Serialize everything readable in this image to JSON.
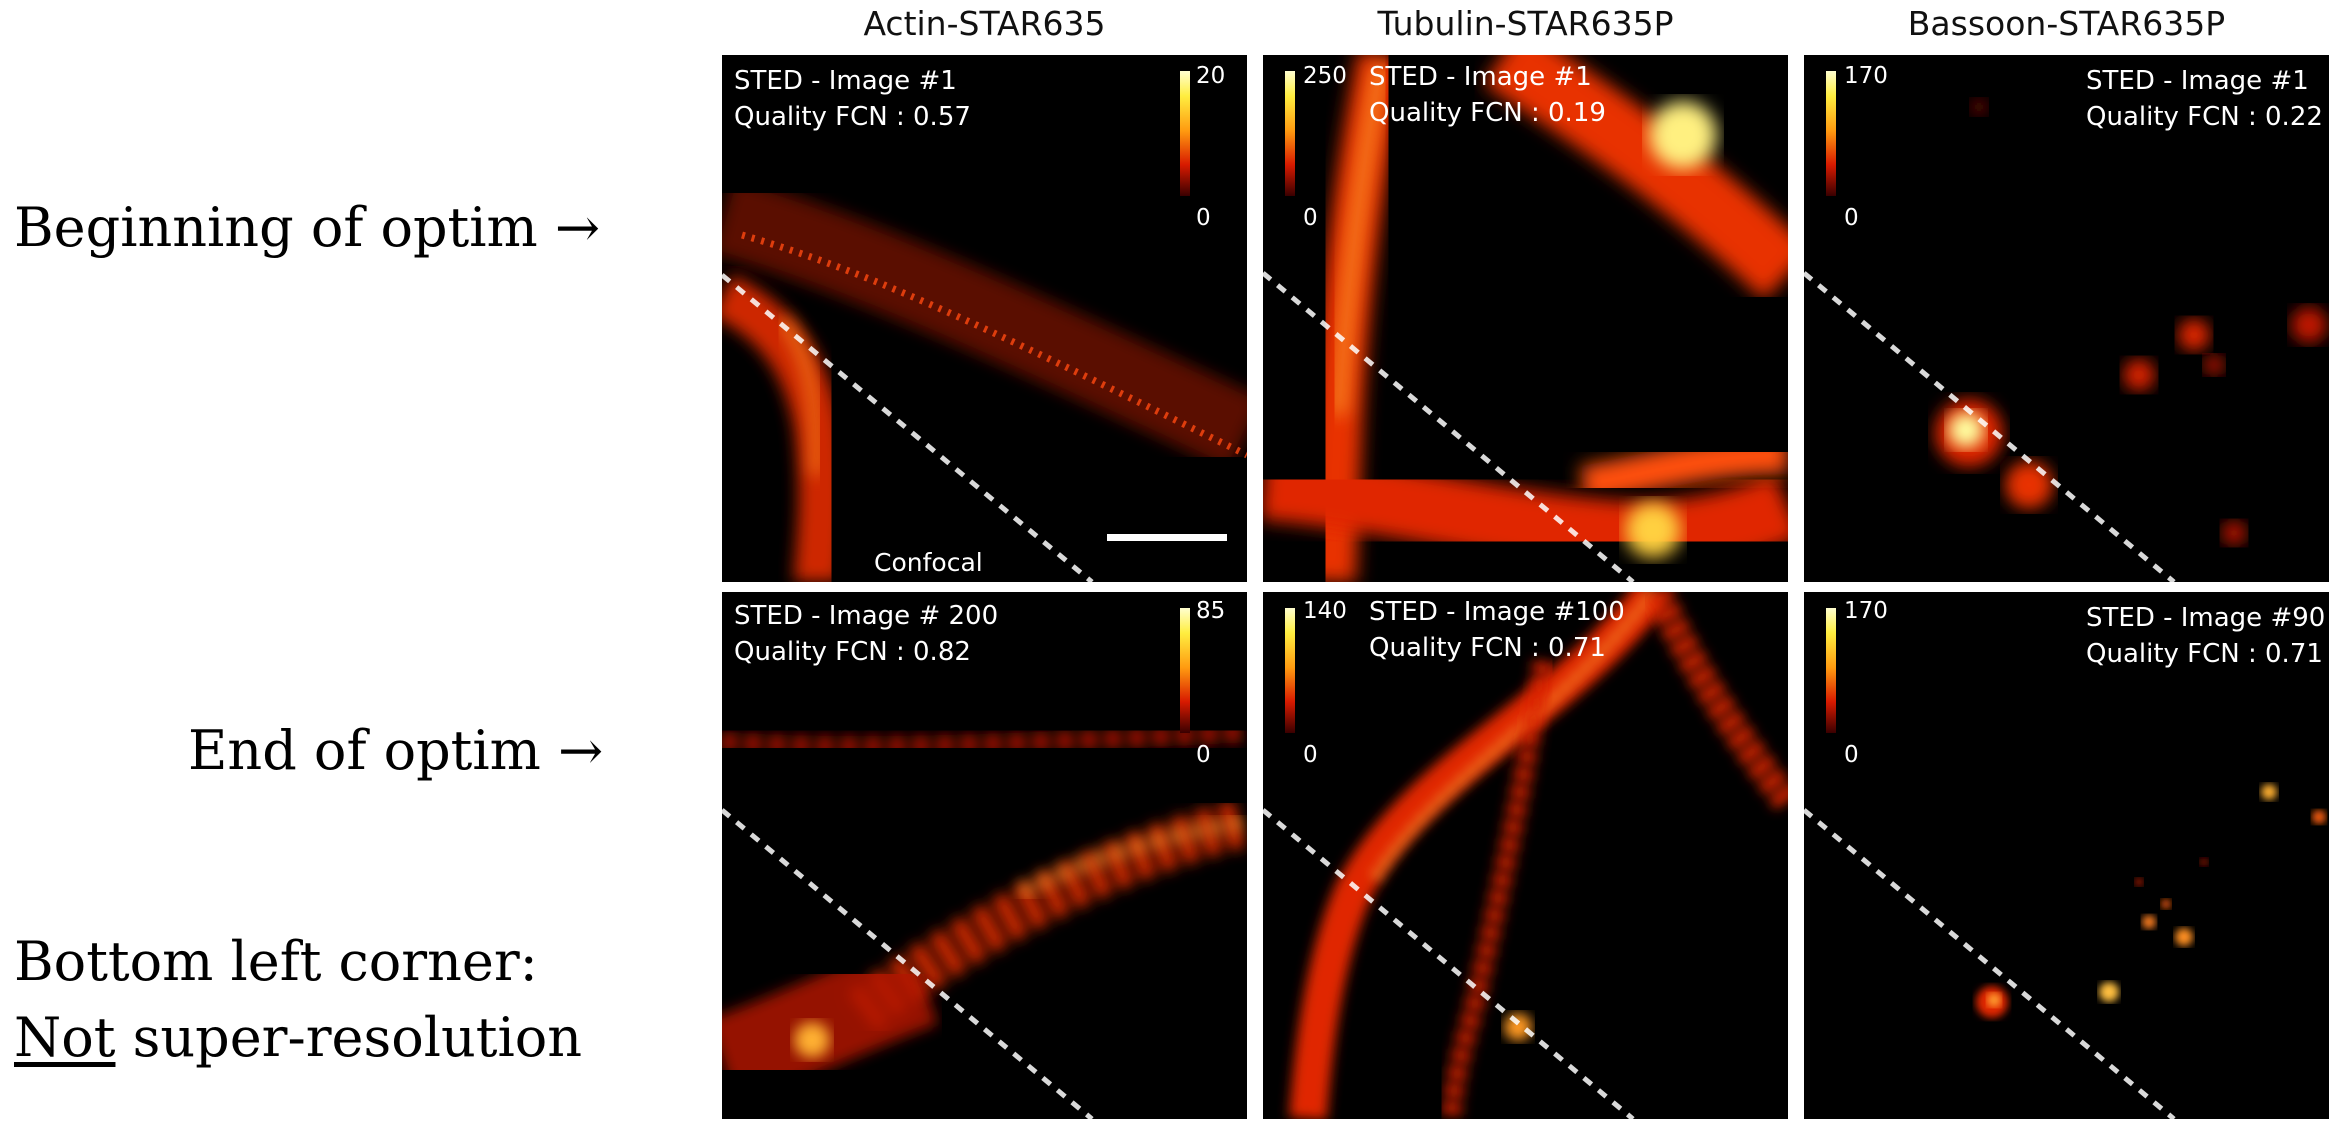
{
  "row_labels": {
    "beginning": "Beginning of optim →",
    "end": "End of optim →",
    "note_line1": "Bottom left corner:",
    "note_line2_underlined": "Not",
    "note_line2_rest": " super-resolution"
  },
  "columns": [
    {
      "title": "Actin-STAR635"
    },
    {
      "title": "Tubulin-STAR635P"
    },
    {
      "title": "Bassoon-STAR635P"
    }
  ],
  "panels": {
    "actin_begin": {
      "image": "STED - Image #1",
      "quality": "Quality FCN : 0.57",
      "cmax": "20",
      "cmin": "0",
      "confocal": "Confocal"
    },
    "tubulin_begin": {
      "image": "STED - Image #1",
      "quality": "Quality FCN : 0.19",
      "cmax": "250",
      "cmin": "0"
    },
    "bassoon_begin": {
      "image": "STED - Image #1",
      "quality": "Quality FCN : 0.22",
      "cmax": "170",
      "cmin": "0"
    },
    "actin_end": {
      "image": "STED - Image # 200",
      "quality": "Quality FCN : 0.82",
      "cmax": "85",
      "cmin": "0"
    },
    "tubulin_end": {
      "image": "STED - Image #100",
      "quality": "Quality FCN : 0.71",
      "cmax": "140",
      "cmin": "0"
    },
    "bassoon_end": {
      "image": "STED - Image #90",
      "quality": "Quality FCN : 0.71",
      "cmax": "170",
      "cmin": "0"
    }
  },
  "colormap": {
    "low": "#000000",
    "mid": "#e02000",
    "high": "#ffff80"
  }
}
